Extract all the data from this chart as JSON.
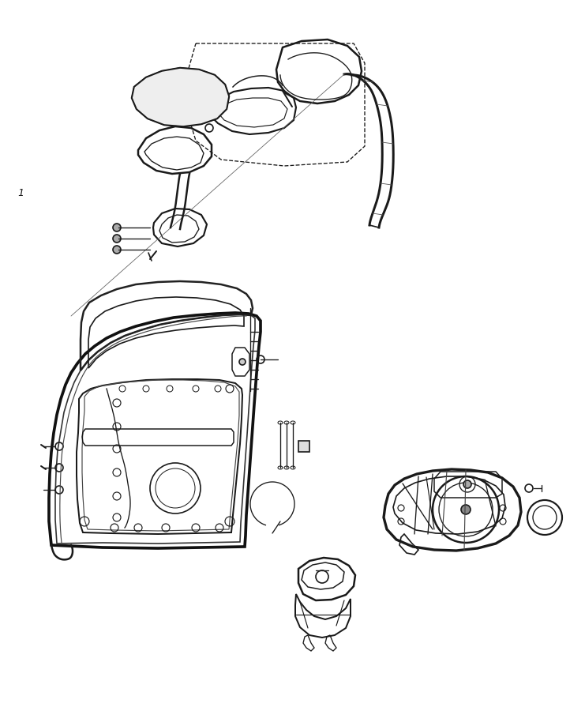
{
  "background_color": "#ffffff",
  "line_color": "#1a1a1a",
  "line_width": 1.2,
  "figsize": [
    7.41,
    9.0
  ],
  "dpi": 100,
  "annotation_1": "1"
}
